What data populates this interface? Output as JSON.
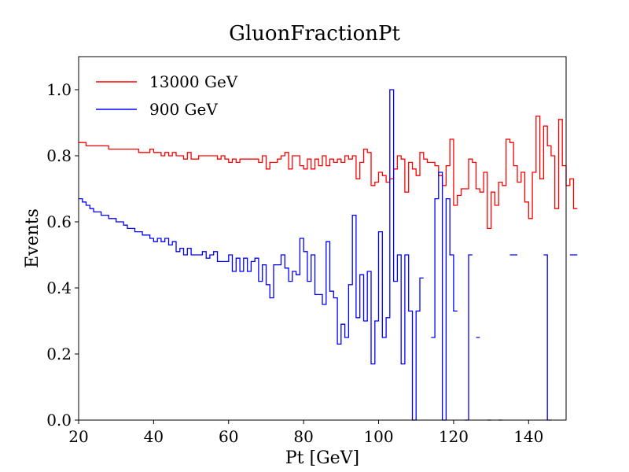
{
  "chart_data": {
    "type": "line",
    "title": "GluonFractionPt",
    "xlabel": "Pt [GeV]",
    "ylabel": "Events",
    "xlim": [
      20,
      150
    ],
    "ylim": [
      0,
      1.1
    ],
    "xticks": [
      20,
      40,
      60,
      80,
      100,
      120,
      140
    ],
    "yticks": [
      0.0,
      0.2,
      0.4,
      0.6,
      0.8,
      1.0
    ],
    "xtick_labels": [
      "20",
      "40",
      "60",
      "80",
      "100",
      "120",
      "140"
    ],
    "ytick_labels": [
      "0.0",
      "0.2",
      "0.4",
      "0.6",
      "0.8",
      "1.0"
    ],
    "grid": false,
    "legend_position": "top-left",
    "bin_edges_start": 20,
    "bin_width": 1,
    "series": [
      {
        "name": "13000 GeV",
        "color": "#ff0000",
        "values": [
          0.84,
          0.84,
          0.83,
          0.83,
          0.83,
          0.83,
          0.83,
          0.83,
          0.82,
          0.82,
          0.82,
          0.82,
          0.82,
          0.82,
          0.82,
          0.82,
          0.81,
          0.81,
          0.81,
          0.82,
          0.81,
          0.81,
          0.8,
          0.81,
          0.8,
          0.81,
          0.8,
          0.8,
          0.79,
          0.81,
          0.79,
          0.79,
          0.8,
          0.8,
          0.8,
          0.8,
          0.8,
          0.79,
          0.8,
          0.79,
          0.78,
          0.79,
          0.78,
          0.79,
          0.79,
          0.79,
          0.79,
          0.79,
          0.78,
          0.8,
          0.76,
          0.78,
          0.78,
          0.79,
          0.8,
          0.81,
          0.76,
          0.8,
          0.8,
          0.77,
          0.76,
          0.79,
          0.76,
          0.79,
          0.77,
          0.8,
          0.77,
          0.79,
          0.78,
          0.79,
          0.78,
          0.8,
          0.79,
          0.8,
          0.73,
          0.78,
          0.82,
          0.81,
          0.71,
          0.72,
          0.75,
          0.74,
          0.72,
          0.73,
          0.76,
          0.8,
          0.79,
          0.69,
          0.78,
          0.76,
          0.74,
          0.81,
          0.79,
          0.78,
          0.78,
          0.77,
          0.74,
          0.71,
          0.77,
          0.85,
          0.65,
          0.68,
          0.7,
          0.7,
          0.79,
          0.78,
          0.7,
          0.69,
          0.75,
          0.58,
          0.69,
          0.65,
          0.72,
          0.71,
          0.85,
          0.84,
          0.77,
          0.72,
          0.75,
          0.66,
          0.61,
          0.75,
          0.92,
          0.73,
          0.89,
          0.83,
          0.8,
          0.64,
          0.91,
          0.77,
          0.71,
          0.73,
          0.64
        ]
      },
      {
        "name": "900 GeV",
        "color": "#0000ff",
        "values": [
          0.67,
          0.66,
          0.65,
          0.64,
          0.63,
          0.63,
          0.62,
          0.62,
          0.61,
          0.61,
          0.6,
          0.6,
          0.59,
          0.58,
          0.58,
          0.57,
          0.57,
          0.56,
          0.56,
          0.55,
          0.54,
          0.55,
          0.54,
          0.55,
          0.53,
          0.54,
          0.51,
          0.52,
          0.5,
          0.52,
          0.5,
          0.5,
          0.5,
          0.51,
          0.49,
          0.5,
          0.51,
          0.48,
          0.48,
          0.48,
          0.5,
          0.45,
          0.49,
          0.45,
          0.49,
          0.45,
          0.48,
          0.49,
          0.42,
          0.47,
          0.41,
          0.37,
          0.47,
          0.47,
          0.5,
          0.46,
          0.42,
          0.45,
          0.44,
          0.55,
          0.51,
          0.42,
          0.5,
          0.38,
          0.38,
          0.35,
          0.54,
          0.39,
          0.37,
          0.23,
          0.29,
          0.25,
          0.41,
          0.62,
          0.31,
          0.44,
          0.3,
          0.45,
          0.17,
          0.3,
          0.57,
          0.25,
          0.31,
          1.0,
          0.42,
          0.5,
          0.17,
          0.5,
          0.33,
          0.0,
          0.33,
          0.43,
          null,
          null,
          0.25,
          0.67,
          0.75,
          0.0,
          0.67,
          0.5,
          0.33,
          null,
          null,
          0.0,
          0.5,
          null,
          0.25,
          null,
          null,
          0.0,
          null,
          null,
          0.0,
          null,
          null,
          0.5,
          0.5,
          null,
          null,
          null,
          null,
          null,
          null,
          null,
          0.5,
          0.0,
          null,
          null,
          null,
          null,
          null,
          0.5,
          0.5
        ]
      }
    ]
  }
}
